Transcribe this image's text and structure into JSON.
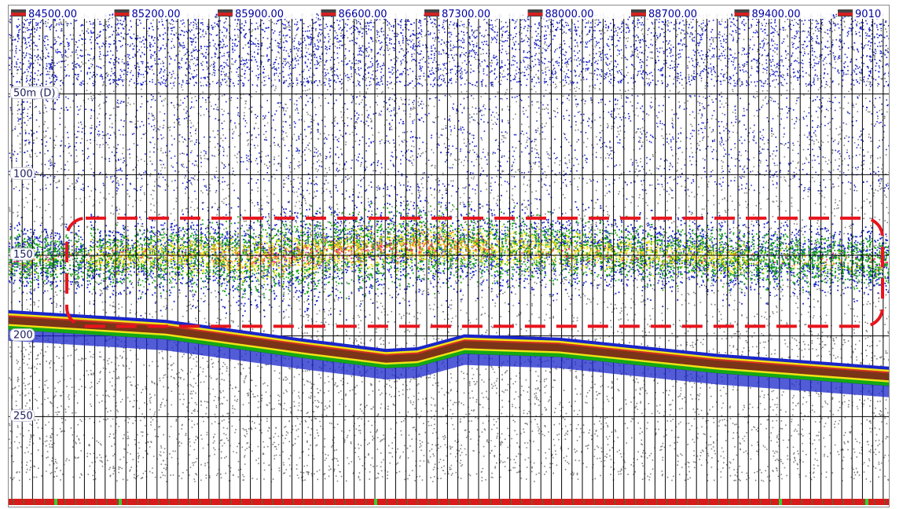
{
  "chart_data": {
    "type": "heatmap",
    "title": "",
    "xlabel": "",
    "ylabel": "",
    "x_ticks": [
      "84500.00",
      "85200.00",
      "85900.00",
      "86600.00",
      "87300.00",
      "88000.00",
      "88700.00",
      "89400.00",
      "9010"
    ],
    "x_range": [
      84500,
      90100
    ],
    "depth_ticks": [
      "50m (D)",
      "100",
      "150",
      "200",
      "250"
    ],
    "depth_values": [
      50,
      100,
      150,
      200,
      250
    ],
    "depth_range": [
      0,
      300
    ],
    "grid": true,
    "annotation": {
      "type": "dashed-rounded-box",
      "color": "#e8141c",
      "x_range": [
        84500,
        90100
      ],
      "depth_range": [
        127,
        194
      ]
    },
    "seabed_depth": [
      {
        "x": 84500,
        "depth": 186
      },
      {
        "x": 85500,
        "depth": 192
      },
      {
        "x": 86400,
        "depth": 204
      },
      {
        "x": 86900,
        "depth": 210
      },
      {
        "x": 87100,
        "depth": 209
      },
      {
        "x": 87400,
        "depth": 201
      },
      {
        "x": 88000,
        "depth": 203
      },
      {
        "x": 89000,
        "depth": 213
      },
      {
        "x": 90100,
        "depth": 221
      }
    ],
    "school_intensity_peak": [
      {
        "x": 84500,
        "depth": 152,
        "level": 0.4
      },
      {
        "x": 85500,
        "depth": 150,
        "level": 0.7
      },
      {
        "x": 86200,
        "depth": 151,
        "level": 0.95
      },
      {
        "x": 87200,
        "depth": 143,
        "level": 0.9
      },
      {
        "x": 88300,
        "depth": 148,
        "level": 0.6
      },
      {
        "x": 89200,
        "depth": 152,
        "level": 0.55
      },
      {
        "x": 90100,
        "depth": 154,
        "level": 0.4
      }
    ],
    "color_scale": [
      "#7f7f7f",
      "#1a25c9",
      "#14a814",
      "#f2e314",
      "#ff8a1e",
      "#ff1f7a",
      "#7a3418"
    ]
  }
}
